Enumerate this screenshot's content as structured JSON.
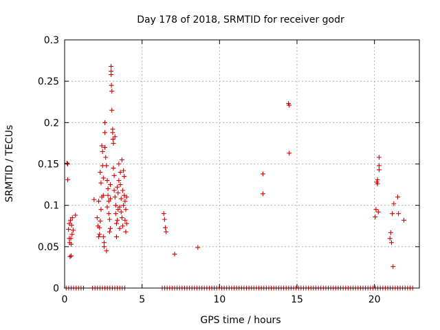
{
  "chart_data": {
    "type": "scatter",
    "title": "Day 178 of 2018, SRMTID for receiver godr",
    "xlabel": "GPS time / hours",
    "ylabel": "SRMTID / TECUs",
    "xlim": [
      0,
      22.9
    ],
    "ylim": [
      0,
      0.3
    ],
    "xticks": [
      0,
      5,
      10,
      15,
      20
    ],
    "xtick_labels": [
      "0",
      "5",
      "10",
      "15",
      "20"
    ],
    "yticks": [
      0,
      0.05,
      0.1,
      0.15,
      0.2,
      0.25,
      0.3
    ],
    "ytick_labels": [
      "0",
      "0.05",
      "0.1",
      "0.15",
      "0.2",
      "0.25",
      "0.3"
    ],
    "grid": true,
    "marker": "+",
    "color": "#d00000",
    "points": [
      [
        0.15,
        0.151
      ],
      [
        0.2,
        0.15
      ],
      [
        0.2,
        0.131
      ],
      [
        0.3,
        0.078
      ],
      [
        0.32,
        0.055
      ],
      [
        0.35,
        0.038
      ],
      [
        0.38,
        0.082
      ],
      [
        0.4,
        0.06
      ],
      [
        0.42,
        0.053
      ],
      [
        0.45,
        0.076
      ],
      [
        0.48,
        0.065
      ],
      [
        0.5,
        0.085
      ],
      [
        0.55,
        0.07
      ],
      [
        0.42,
        0.039
      ],
      [
        0.7,
        0.088
      ],
      [
        0.25,
        0.071
      ],
      [
        0.3,
        0.06
      ],
      [
        1.9,
        0.107
      ],
      [
        2.1,
        0.085
      ],
      [
        2.15,
        0.075
      ],
      [
        2.2,
        0.062
      ],
      [
        2.2,
        0.105
      ],
      [
        2.25,
        0.073
      ],
      [
        2.25,
        0.065
      ],
      [
        2.3,
        0.081
      ],
      [
        2.3,
        0.14
      ],
      [
        2.35,
        0.127
      ],
      [
        2.35,
        0.095
      ],
      [
        2.4,
        0.11
      ],
      [
        2.4,
        0.172
      ],
      [
        2.45,
        0.165
      ],
      [
        2.45,
        0.148
      ],
      [
        2.5,
        0.133
      ],
      [
        2.5,
        0.112
      ],
      [
        2.5,
        0.062
      ],
      [
        2.55,
        0.055
      ],
      [
        2.55,
        0.05
      ],
      [
        2.6,
        0.188
      ],
      [
        2.6,
        0.2
      ],
      [
        2.6,
        0.17
      ],
      [
        2.65,
        0.158
      ],
      [
        2.7,
        0.148
      ],
      [
        2.7,
        0.045
      ],
      [
        2.75,
        0.13
      ],
      [
        2.75,
        0.098
      ],
      [
        2.8,
        0.12
      ],
      [
        2.8,
        0.112
      ],
      [
        2.85,
        0.105
      ],
      [
        2.85,
        0.09
      ],
      [
        2.9,
        0.083
      ],
      [
        2.9,
        0.068
      ],
      [
        2.95,
        0.072
      ],
      [
        2.95,
        0.108
      ],
      [
        2.95,
        0.125
      ],
      [
        3.0,
        0.268
      ],
      [
        3.0,
        0.262
      ],
      [
        3.0,
        0.258
      ],
      [
        3.02,
        0.245
      ],
      [
        3.05,
        0.238
      ],
      [
        3.05,
        0.215
      ],
      [
        3.1,
        0.192
      ],
      [
        3.1,
        0.188
      ],
      [
        3.12,
        0.18
      ],
      [
        3.15,
        0.175
      ],
      [
        3.15,
        0.145
      ],
      [
        3.2,
        0.136
      ],
      [
        3.2,
        0.118
      ],
      [
        3.25,
        0.183
      ],
      [
        3.25,
        0.11
      ],
      [
        3.3,
        0.1
      ],
      [
        3.3,
        0.09
      ],
      [
        3.35,
        0.078
      ],
      [
        3.35,
        0.062
      ],
      [
        3.4,
        0.122
      ],
      [
        3.4,
        0.082
      ],
      [
        3.45,
        0.095
      ],
      [
        3.45,
        0.115
      ],
      [
        3.5,
        0.13
      ],
      [
        3.5,
        0.15
      ],
      [
        3.55,
        0.098
      ],
      [
        3.55,
        0.072
      ],
      [
        3.6,
        0.14
      ],
      [
        3.6,
        0.125
      ],
      [
        3.65,
        0.108
      ],
      [
        3.65,
        0.092
      ],
      [
        3.7,
        0.155
      ],
      [
        3.7,
        0.085
      ],
      [
        3.75,
        0.118
      ],
      [
        3.75,
        0.075
      ],
      [
        3.8,
        0.142
      ],
      [
        3.8,
        0.1
      ],
      [
        3.85,
        0.135
      ],
      [
        3.85,
        0.112
      ],
      [
        3.9,
        0.105
      ],
      [
        3.9,
        0.082
      ],
      [
        3.95,
        0.095
      ],
      [
        3.95,
        0.068
      ],
      [
        4.0,
        0.11
      ],
      [
        4.0,
        0.078
      ],
      [
        6.4,
        0.09
      ],
      [
        6.45,
        0.083
      ],
      [
        6.5,
        0.073
      ],
      [
        6.55,
        0.068
      ],
      [
        7.1,
        0.041
      ],
      [
        8.6,
        0.049
      ],
      [
        12.8,
        0.138
      ],
      [
        12.8,
        0.114
      ],
      [
        14.45,
        0.223
      ],
      [
        14.5,
        0.221
      ],
      [
        14.5,
        0.163
      ],
      [
        20.05,
        0.086
      ],
      [
        20.1,
        0.095
      ],
      [
        20.15,
        0.128
      ],
      [
        20.2,
        0.126
      ],
      [
        20.2,
        0.131
      ],
      [
        20.25,
        0.092
      ],
      [
        20.3,
        0.143
      ],
      [
        20.3,
        0.158
      ],
      [
        20.3,
        0.148
      ],
      [
        21.0,
        0.06
      ],
      [
        21.05,
        0.067
      ],
      [
        21.1,
        0.055
      ],
      [
        21.15,
        0.09
      ],
      [
        21.2,
        0.026
      ],
      [
        21.25,
        0.102
      ],
      [
        21.5,
        0.11
      ],
      [
        21.55,
        0.09
      ],
      [
        21.9,
        0.082
      ]
    ],
    "zero_segments": [
      [
        0.1,
        1.3
      ],
      [
        1.8,
        4.0
      ],
      [
        6.3,
        22.5
      ]
    ]
  }
}
